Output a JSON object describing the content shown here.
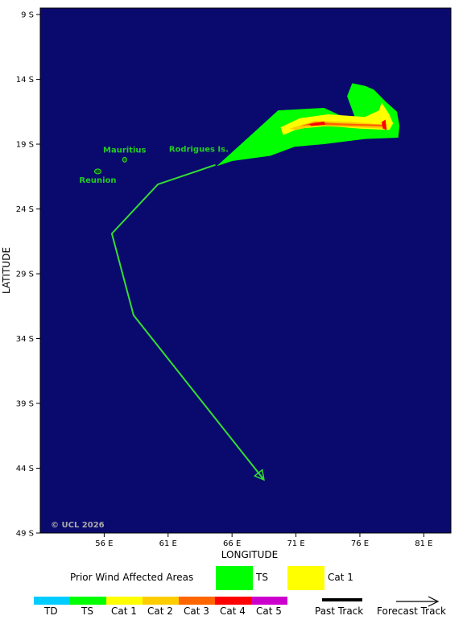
{
  "map": {
    "background_color": "#0a0a6e",
    "lat_ticks": [
      "9 S",
      "14 S",
      "19 S",
      "24 S",
      "29 S",
      "34 S",
      "39 S",
      "44 S",
      "49 S"
    ],
    "lon_ticks": [
      "56 E",
      "61 E",
      "66 E",
      "71 E",
      "76 E",
      "81 E"
    ],
    "xlabel": "LONGITUDE",
    "ylabel": "LATITUDE",
    "places": [
      {
        "name": "Mauritius",
        "lon": 57.6,
        "lat": -20.2
      },
      {
        "name": "Reunion",
        "lon": 55.5,
        "lat": -21.1
      },
      {
        "name": "Rodrigues Is.",
        "lon": 63.4,
        "lat": -19.7
      }
    ],
    "credit": "© UCL 2026",
    "track": {
      "color": "#33dd33",
      "points": [
        {
          "lon": 64.7,
          "lat": -20.6
        },
        {
          "lon": 60.2,
          "lat": -22.1
        },
        {
          "lon": 56.6,
          "lat": -25.9
        },
        {
          "lon": 58.3,
          "lat": -32.2
        },
        {
          "lon": 68.5,
          "lat": -44.9
        }
      ]
    },
    "wind_areas": {
      "ts_color": "#00ff00",
      "cat1_color": "#ffff00",
      "cat2_color": "#ffcc00",
      "cat3_color": "#ff6600",
      "cat4_color": "#ff0000"
    }
  },
  "legend": {
    "title": "Prior Wind Affected Areas",
    "items": [
      {
        "label": "TS",
        "color": "#00ff00"
      },
      {
        "label": "Cat 1",
        "color": "#ffff00"
      }
    ]
  },
  "scale": {
    "items": [
      {
        "label": "TD",
        "color": "#00ccff"
      },
      {
        "label": "TS",
        "color": "#00ff00"
      },
      {
        "label": "Cat 1",
        "color": "#ffff00"
      },
      {
        "label": "Cat 2",
        "color": "#ffcc00"
      },
      {
        "label": "Cat 3",
        "color": "#ff6600"
      },
      {
        "label": "Cat 4",
        "color": "#ff0000"
      },
      {
        "label": "Cat 5",
        "color": "#cc00cc"
      }
    ],
    "past_track": "Past Track",
    "forecast_track": "Forecast Track"
  }
}
